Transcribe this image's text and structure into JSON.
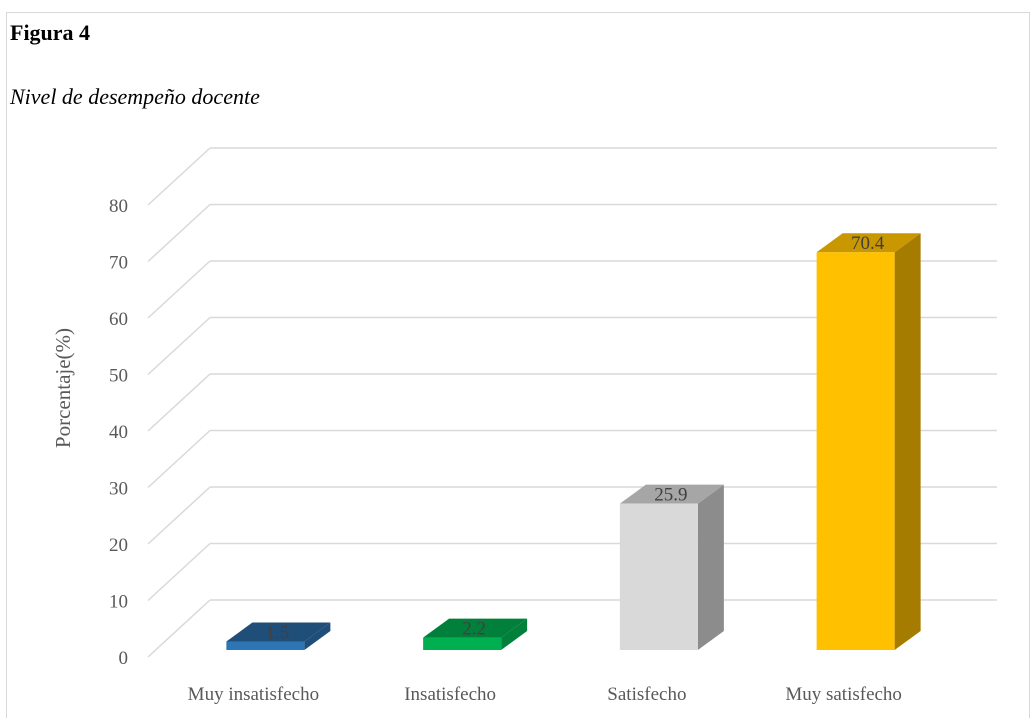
{
  "figure_label": "Figura 4",
  "figure_title": "Nivel de desempeño docente",
  "chart_data": {
    "type": "bar",
    "style": "3d-column",
    "title": "",
    "xlabel": "",
    "ylabel": "Porcentaje(%)",
    "ylim": [
      0,
      80
    ],
    "yticks": [
      0,
      10,
      20,
      30,
      40,
      50,
      60,
      70,
      80
    ],
    "grid": true,
    "categories": [
      "Muy insatisfecho",
      "Insatisfecho",
      "Satisfecho",
      "Muy satisfecho"
    ],
    "values": [
      1.5,
      2.2,
      25.9,
      70.4
    ],
    "data_labels": [
      "1.5",
      "2.2",
      "25.9",
      "70.4"
    ],
    "colors": {
      "front": [
        "#2e75b6",
        "#00b050",
        "#d9d9d9",
        "#ffc000"
      ],
      "side": [
        "#1f4e79",
        "#00803a",
        "#8c8c8c",
        "#a67c00"
      ],
      "top": [
        "#1f4e79",
        "#00803a",
        "#a6a6a6",
        "#c99700"
      ]
    }
  }
}
